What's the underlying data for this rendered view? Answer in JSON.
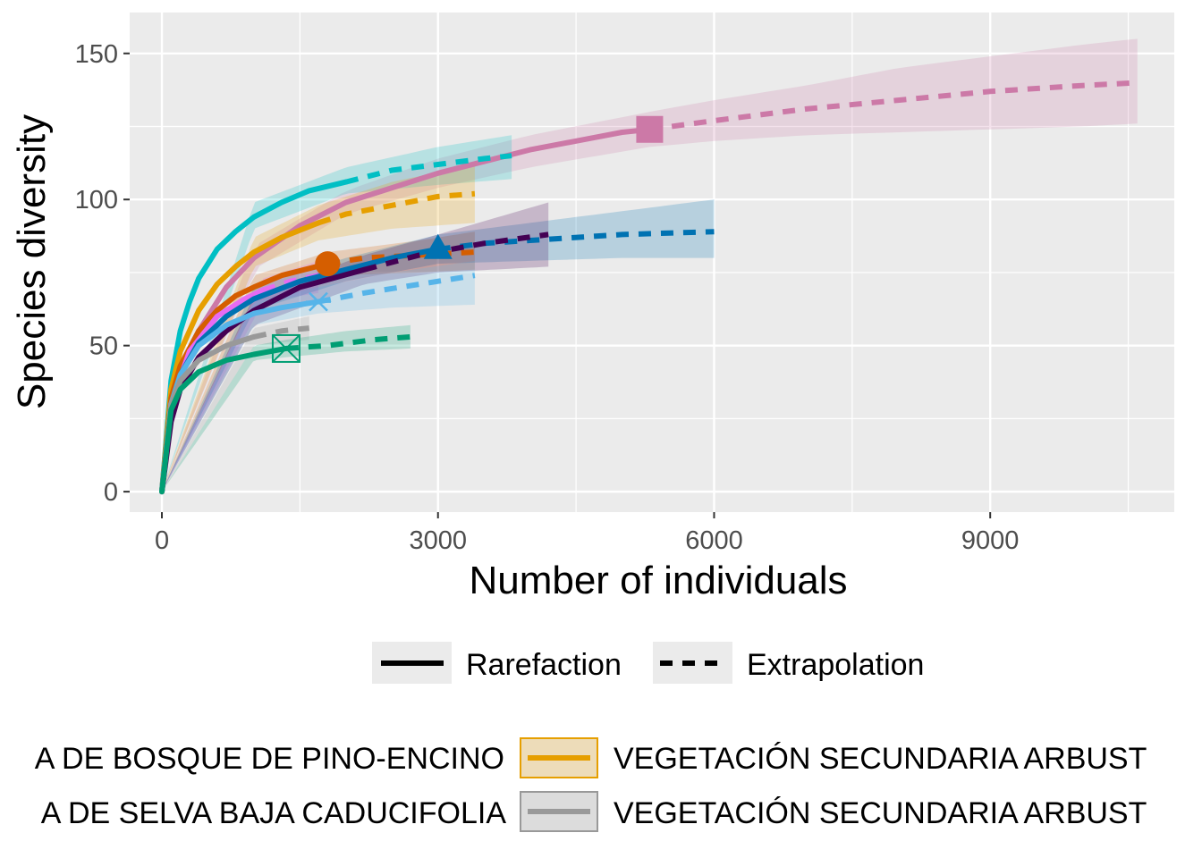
{
  "chart_data": {
    "type": "line",
    "xlabel": "Number of individuals",
    "ylabel": "Species diversity",
    "xlim": [
      -350,
      11000
    ],
    "ylim": [
      -7,
      164
    ],
    "x_ticks": [
      0,
      3000,
      6000,
      9000
    ],
    "x_tick_labels": [
      "0",
      "3000",
      "6000",
      "9000"
    ],
    "y_ticks": [
      0,
      50,
      100,
      150
    ],
    "y_tick_labels": [
      "0",
      "50",
      "100",
      "150"
    ],
    "grid": true,
    "legend_position": "bottom",
    "linetype_legend": [
      {
        "label": "Rarefaction",
        "style": "solid"
      },
      {
        "label": "Extrapolation",
        "style": "dashed"
      }
    ],
    "color_legend_visible": [
      {
        "label": "A DE BOSQUE DE PINO-ENCINO",
        "color": "#E69F00",
        "truncated": "left",
        "swatch": false
      },
      {
        "label": "VEGETACIÓN SECUNDARIA ARBUST",
        "color": "#E69F00",
        "truncated": "right",
        "swatch": true
      },
      {
        "label": "A DE SELVA BAJA CADUCIFOLIA",
        "color": "#999999",
        "truncated": "left",
        "swatch": false
      },
      {
        "label": "VEGETACIÓN SECUNDARIA ARBUST",
        "color": "#999999",
        "truncated": "right",
        "swatch": true
      }
    ],
    "series": [
      {
        "color": "#CC79A7",
        "marker": "square",
        "observed": [
          5300,
          124
        ],
        "points": [
          [
            0,
            0
          ],
          [
            100,
            28
          ],
          [
            200,
            40
          ],
          [
            400,
            55
          ],
          [
            700,
            70
          ],
          [
            1000,
            80
          ],
          [
            1500,
            91
          ],
          [
            2000,
            99
          ],
          [
            2500,
            104
          ],
          [
            3000,
            109
          ],
          [
            3500,
            113
          ],
          [
            4000,
            117
          ],
          [
            4500,
            120
          ],
          [
            5000,
            123
          ],
          [
            5300,
            124
          ],
          [
            6000,
            127
          ],
          [
            7000,
            131
          ],
          [
            8000,
            134
          ],
          [
            9000,
            137
          ],
          [
            10000,
            139
          ],
          [
            10600,
            140
          ]
        ],
        "lower": [
          [
            0,
            0
          ],
          [
            1000,
            76
          ],
          [
            2000,
            95
          ],
          [
            3000,
            104
          ],
          [
            4000,
            111
          ],
          [
            5300,
            118
          ],
          [
            6000,
            120
          ],
          [
            7000,
            122
          ],
          [
            8000,
            123
          ],
          [
            9000,
            124
          ],
          [
            10000,
            125
          ],
          [
            10600,
            126
          ]
        ],
        "upper": [
          [
            0,
            0
          ],
          [
            1000,
            84
          ],
          [
            2000,
            103
          ],
          [
            3000,
            114
          ],
          [
            4000,
            122
          ],
          [
            5300,
            130
          ],
          [
            6000,
            134
          ],
          [
            7000,
            139
          ],
          [
            8000,
            145
          ],
          [
            9000,
            149
          ],
          [
            10000,
            153
          ],
          [
            10600,
            155
          ]
        ]
      },
      {
        "color": "#00BFC4",
        "marker": "none",
        "observed": [
          2000,
          106
        ],
        "points": [
          [
            0,
            0
          ],
          [
            100,
            38
          ],
          [
            200,
            55
          ],
          [
            300,
            65
          ],
          [
            400,
            73
          ],
          [
            600,
            83
          ],
          [
            800,
            89
          ],
          [
            1000,
            94
          ],
          [
            1300,
            99
          ],
          [
            1600,
            103
          ],
          [
            2000,
            106
          ],
          [
            2500,
            110
          ],
          [
            3000,
            112
          ],
          [
            3500,
            114
          ],
          [
            3800,
            115
          ]
        ],
        "lower": [
          [
            0,
            0
          ],
          [
            1000,
            90
          ],
          [
            2000,
            102
          ],
          [
            3000,
            105
          ],
          [
            3800,
            107
          ]
        ],
        "upper": [
          [
            0,
            0
          ],
          [
            1000,
            99
          ],
          [
            2000,
            111
          ],
          [
            3000,
            118
          ],
          [
            3800,
            122
          ]
        ]
      },
      {
        "color": "#E69F00",
        "marker": "none",
        "observed": [
          1700,
          92
        ],
        "points": [
          [
            0,
            0
          ],
          [
            100,
            35
          ],
          [
            200,
            48
          ],
          [
            400,
            62
          ],
          [
            600,
            71
          ],
          [
            800,
            77
          ],
          [
            1000,
            82
          ],
          [
            1300,
            87
          ],
          [
            1700,
            92
          ],
          [
            2000,
            95
          ],
          [
            2500,
            98
          ],
          [
            3000,
            101
          ],
          [
            3400,
            102
          ]
        ],
        "lower": [
          [
            0,
            0
          ],
          [
            1000,
            77
          ],
          [
            1700,
            86
          ],
          [
            2500,
            90
          ],
          [
            3400,
            92
          ]
        ],
        "upper": [
          [
            0,
            0
          ],
          [
            1000,
            87
          ],
          [
            1700,
            98
          ],
          [
            2500,
            106
          ],
          [
            3400,
            112
          ]
        ]
      },
      {
        "color": "#D55E00",
        "marker": "circle",
        "observed": [
          1800,
          78
        ],
        "points": [
          [
            0,
            0
          ],
          [
            100,
            32
          ],
          [
            200,
            43
          ],
          [
            400,
            55
          ],
          [
            600,
            62
          ],
          [
            800,
            67
          ],
          [
            1000,
            70
          ],
          [
            1300,
            74
          ],
          [
            1800,
            78
          ],
          [
            2200,
            80
          ],
          [
            2800,
            81
          ],
          [
            3400,
            82
          ]
        ],
        "lower": [
          [
            0,
            0
          ],
          [
            1000,
            66
          ],
          [
            1800,
            74
          ],
          [
            2800,
            75
          ],
          [
            3400,
            76
          ]
        ],
        "upper": [
          [
            0,
            0
          ],
          [
            1000,
            74
          ],
          [
            1800,
            82
          ],
          [
            2800,
            86
          ],
          [
            3400,
            89
          ]
        ]
      },
      {
        "color": "#E76BF3",
        "marker": "none",
        "observed": [
          1100,
          69
        ],
        "points": [
          [
            0,
            0
          ],
          [
            100,
            30
          ],
          [
            300,
            48
          ],
          [
            600,
            60
          ],
          [
            900,
            66
          ],
          [
            1100,
            69
          ],
          [
            1400,
            72
          ],
          [
            1700,
            74
          ]
        ],
        "lower": [
          [
            0,
            0
          ],
          [
            1100,
            65
          ],
          [
            1700,
            68
          ]
        ],
        "upper": [
          [
            0,
            0
          ],
          [
            1100,
            73
          ],
          [
            1700,
            79
          ]
        ]
      },
      {
        "color": "#0072B2",
        "marker": "triangle",
        "observed": [
          3000,
          83
        ],
        "points": [
          [
            0,
            0
          ],
          [
            100,
            30
          ],
          [
            200,
            40
          ],
          [
            400,
            51
          ],
          [
            700,
            60
          ],
          [
            1000,
            66
          ],
          [
            1500,
            72
          ],
          [
            2000,
            76
          ],
          [
            2500,
            80
          ],
          [
            3000,
            83
          ],
          [
            3500,
            85
          ],
          [
            4000,
            86
          ],
          [
            5000,
            88
          ],
          [
            6000,
            89
          ]
        ],
        "lower": [
          [
            0,
            0
          ],
          [
            1000,
            62
          ],
          [
            2000,
            72
          ],
          [
            3000,
            78
          ],
          [
            4000,
            79
          ],
          [
            5000,
            80
          ],
          [
            6000,
            80
          ]
        ],
        "upper": [
          [
            0,
            0
          ],
          [
            1000,
            70
          ],
          [
            2000,
            80
          ],
          [
            3000,
            88
          ],
          [
            4000,
            92
          ],
          [
            5000,
            96
          ],
          [
            6000,
            100
          ]
        ]
      },
      {
        "color": "#440154",
        "marker": "none",
        "observed": [
          2200,
          76
        ],
        "points": [
          [
            0,
            0
          ],
          [
            100,
            24
          ],
          [
            200,
            35
          ],
          [
            400,
            46
          ],
          [
            700,
            55
          ],
          [
            1000,
            62
          ],
          [
            1500,
            70
          ],
          [
            2200,
            76
          ],
          [
            2800,
            81
          ],
          [
            3500,
            85
          ],
          [
            4200,
            88
          ]
        ],
        "lower": [
          [
            0,
            0
          ],
          [
            1000,
            57
          ],
          [
            2200,
            71
          ],
          [
            3000,
            75
          ],
          [
            4200,
            77
          ]
        ],
        "upper": [
          [
            0,
            0
          ],
          [
            1000,
            67
          ],
          [
            2200,
            81
          ],
          [
            3000,
            88
          ],
          [
            4200,
            99
          ]
        ]
      },
      {
        "color": "#56B4E9",
        "marker": "asterisk",
        "observed": [
          1700,
          65
        ],
        "points": [
          [
            0,
            0
          ],
          [
            100,
            30
          ],
          [
            200,
            40
          ],
          [
            400,
            50
          ],
          [
            700,
            57
          ],
          [
            1000,
            61
          ],
          [
            1300,
            63
          ],
          [
            1700,
            65
          ],
          [
            2200,
            68
          ],
          [
            2800,
            71
          ],
          [
            3400,
            74
          ]
        ],
        "lower": [
          [
            0,
            0
          ],
          [
            1000,
            57
          ],
          [
            1700,
            61
          ],
          [
            2500,
            63
          ],
          [
            3400,
            64
          ]
        ],
        "upper": [
          [
            0,
            0
          ],
          [
            1000,
            65
          ],
          [
            1700,
            70
          ],
          [
            2500,
            75
          ],
          [
            3400,
            79
          ]
        ]
      },
      {
        "color": "#999999",
        "marker": "none",
        "observed": [
          1000,
          53
        ],
        "points": [
          [
            0,
            0
          ],
          [
            100,
            30
          ],
          [
            200,
            38
          ],
          [
            400,
            45
          ],
          [
            700,
            50
          ],
          [
            1000,
            53
          ],
          [
            1300,
            55
          ],
          [
            1600,
            56
          ]
        ],
        "lower": [
          [
            0,
            0
          ],
          [
            1000,
            50
          ],
          [
            1600,
            52
          ]
        ],
        "upper": [
          [
            0,
            0
          ],
          [
            1000,
            56
          ],
          [
            1600,
            60
          ]
        ]
      },
      {
        "color": "#009E73",
        "marker": "boxed-x",
        "observed": [
          1350,
          49
        ],
        "points": [
          [
            0,
            0
          ],
          [
            100,
            28
          ],
          [
            200,
            35
          ],
          [
            400,
            41
          ],
          [
            700,
            45
          ],
          [
            1000,
            47
          ],
          [
            1350,
            49
          ],
          [
            1800,
            50
          ],
          [
            2300,
            52
          ],
          [
            2700,
            53
          ]
        ],
        "lower": [
          [
            0,
            0
          ],
          [
            1000,
            45
          ],
          [
            1350,
            46
          ],
          [
            2000,
            48
          ],
          [
            2700,
            49
          ]
        ],
        "upper": [
          [
            0,
            0
          ],
          [
            1000,
            50
          ],
          [
            1350,
            52
          ],
          [
            2000,
            55
          ],
          [
            2700,
            57
          ]
        ]
      }
    ]
  }
}
